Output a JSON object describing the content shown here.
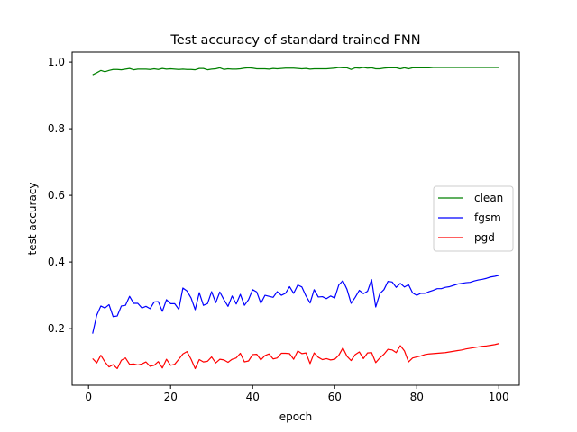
{
  "chart_data": {
    "type": "line",
    "title": "Test accuracy of standard trained FNN",
    "xlabel": "epoch",
    "ylabel": "test accuracy",
    "xlim": [
      -4,
      105
    ],
    "ylim": [
      0.03,
      1.03
    ],
    "xticks": [
      0,
      20,
      40,
      60,
      80,
      100
    ],
    "yticks": [
      0.2,
      0.4,
      0.6,
      0.8,
      1.0
    ],
    "xtick_labels": [
      "0",
      "20",
      "40",
      "60",
      "80",
      "100"
    ],
    "ytick_labels": [
      "0.2",
      "0.4",
      "0.6",
      "0.8",
      "1.0"
    ],
    "grid": false,
    "legend_position": "center-right",
    "x": [
      1,
      2,
      3,
      4,
      5,
      6,
      7,
      8,
      9,
      10,
      11,
      12,
      13,
      14,
      15,
      16,
      17,
      18,
      19,
      20,
      21,
      22,
      23,
      24,
      25,
      26,
      27,
      28,
      29,
      30,
      31,
      32,
      33,
      34,
      35,
      36,
      37,
      38,
      39,
      40,
      41,
      42,
      43,
      44,
      45,
      46,
      47,
      48,
      49,
      50,
      51,
      52,
      53,
      54,
      55,
      56,
      57,
      58,
      59,
      60,
      61,
      62,
      63,
      64,
      65,
      66,
      67,
      68,
      69,
      70,
      71,
      72,
      73,
      74,
      75,
      76,
      77,
      78,
      79,
      80,
      81,
      82,
      83,
      84,
      85,
      86,
      87,
      88,
      89,
      90,
      91,
      92,
      93,
      94,
      95,
      96,
      97,
      98,
      99,
      100
    ],
    "series": [
      {
        "name": "clean",
        "color": "#008000",
        "values": [
          0.962,
          0.968,
          0.975,
          0.971,
          0.975,
          0.978,
          0.978,
          0.977,
          0.979,
          0.981,
          0.977,
          0.979,
          0.979,
          0.979,
          0.978,
          0.98,
          0.978,
          0.981,
          0.979,
          0.98,
          0.979,
          0.978,
          0.979,
          0.978,
          0.978,
          0.977,
          0.981,
          0.981,
          0.977,
          0.979,
          0.98,
          0.983,
          0.978,
          0.98,
          0.979,
          0.979,
          0.98,
          0.982,
          0.983,
          0.982,
          0.98,
          0.98,
          0.98,
          0.979,
          0.981,
          0.98,
          0.981,
          0.982,
          0.982,
          0.982,
          0.981,
          0.98,
          0.981,
          0.979,
          0.98,
          0.98,
          0.98,
          0.98,
          0.981,
          0.982,
          0.984,
          0.983,
          0.983,
          0.978,
          0.983,
          0.982,
          0.984,
          0.982,
          0.983,
          0.98,
          0.98,
          0.982,
          0.983,
          0.983,
          0.983,
          0.98,
          0.983,
          0.98,
          0.983,
          0.983,
          0.983,
          0.983,
          0.983,
          0.984,
          0.984,
          0.984,
          0.984,
          0.984,
          0.984,
          0.984,
          0.984,
          0.984,
          0.984,
          0.984,
          0.984,
          0.984,
          0.984,
          0.984,
          0.984,
          0.984
        ]
      },
      {
        "name": "fgsm",
        "color": "#0000ff",
        "values": [
          0.185,
          0.24,
          0.268,
          0.262,
          0.272,
          0.236,
          0.238,
          0.268,
          0.27,
          0.297,
          0.276,
          0.276,
          0.262,
          0.267,
          0.26,
          0.28,
          0.281,
          0.252,
          0.287,
          0.275,
          0.275,
          0.258,
          0.322,
          0.313,
          0.292,
          0.257,
          0.308,
          0.27,
          0.275,
          0.311,
          0.278,
          0.31,
          0.287,
          0.267,
          0.298,
          0.274,
          0.303,
          0.27,
          0.287,
          0.317,
          0.31,
          0.276,
          0.3,
          0.297,
          0.294,
          0.311,
          0.3,
          0.306,
          0.326,
          0.306,
          0.331,
          0.325,
          0.298,
          0.277,
          0.317,
          0.295,
          0.296,
          0.29,
          0.298,
          0.292,
          0.331,
          0.344,
          0.318,
          0.276,
          0.294,
          0.315,
          0.305,
          0.312,
          0.347,
          0.265,
          0.305,
          0.317,
          0.342,
          0.34,
          0.324,
          0.336,
          0.325,
          0.332,
          0.307,
          0.3,
          0.306,
          0.306,
          0.311,
          0.315,
          0.32,
          0.32,
          0.324,
          0.326,
          0.33,
          0.334,
          0.336,
          0.338,
          0.339,
          0.343,
          0.346,
          0.348,
          0.351,
          0.355,
          0.357,
          0.36
        ]
      },
      {
        "name": "pgd",
        "color": "#ff0000",
        "values": [
          0.11,
          0.097,
          0.12,
          0.1,
          0.085,
          0.092,
          0.08,
          0.105,
          0.112,
          0.093,
          0.094,
          0.091,
          0.094,
          0.1,
          0.087,
          0.09,
          0.101,
          0.082,
          0.108,
          0.09,
          0.093,
          0.108,
          0.124,
          0.131,
          0.108,
          0.08,
          0.107,
          0.1,
          0.102,
          0.115,
          0.097,
          0.108,
          0.106,
          0.099,
          0.108,
          0.112,
          0.126,
          0.1,
          0.103,
          0.122,
          0.123,
          0.106,
          0.119,
          0.124,
          0.109,
          0.112,
          0.126,
          0.126,
          0.125,
          0.108,
          0.133,
          0.125,
          0.127,
          0.095,
          0.127,
          0.114,
          0.107,
          0.11,
          0.106,
          0.108,
          0.12,
          0.142,
          0.117,
          0.104,
          0.122,
          0.13,
          0.11,
          0.127,
          0.128,
          0.098,
          0.112,
          0.123,
          0.138,
          0.136,
          0.128,
          0.149,
          0.133,
          0.1,
          0.112,
          0.115,
          0.118,
          0.122,
          0.124,
          0.125,
          0.126,
          0.127,
          0.128,
          0.13,
          0.132,
          0.134,
          0.136,
          0.139,
          0.141,
          0.143,
          0.145,
          0.147,
          0.148,
          0.15,
          0.152,
          0.155
        ]
      }
    ]
  }
}
